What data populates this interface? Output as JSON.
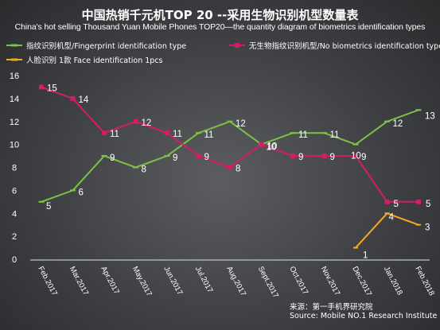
{
  "title": "中国热销千元机TOP 20 --采用生物识别机型数量表",
  "subtitle": "China's hot selling Thousand Yuan Mobile Phones TOP20—the quantity diagram of biometrics identification types",
  "source": {
    "line1": "来源：第一手机界研究院",
    "line2": "Source: Mobile NO.1 Research Institute"
  },
  "colors": {
    "fingerprint": "#7ec043",
    "no_biometrics": "#d81a6b",
    "face": "#f7a823"
  },
  "chart_data": {
    "type": "line",
    "categories": [
      "Feb.2017",
      "Mar.2017",
      "Apr.2017",
      "May.2017",
      "Jun.2017",
      "Jul.2017",
      "Aug.2017",
      "Sept.2017",
      "Oct.2017",
      "Nov.2017",
      "Dec.2017",
      "Jan.2018",
      "Feb.2018"
    ],
    "ylim": [
      0,
      16
    ],
    "yticks": [
      "0",
      "2",
      "4",
      "6",
      "8",
      "10",
      "12",
      "14",
      "16"
    ],
    "legend_position": "top",
    "series": [
      {
        "name": "指纹识别机型/Fingerprint identification type",
        "key": "fingerprint",
        "values": [
          5,
          6,
          9,
          8,
          9,
          11,
          12,
          10,
          11,
          11,
          10,
          12,
          13
        ]
      },
      {
        "name": "无生物指纹识别机型/No biometrics identification type",
        "key": "no_biometrics",
        "values": [
          15,
          14,
          11,
          12,
          11,
          9,
          8,
          10,
          9,
          9,
          9,
          5,
          5
        ]
      },
      {
        "name": "人脸识别 1款 Face identification 1pcs",
        "key": "face",
        "values": [
          null,
          null,
          null,
          null,
          null,
          null,
          null,
          null,
          null,
          null,
          1,
          4,
          3
        ]
      }
    ]
  }
}
